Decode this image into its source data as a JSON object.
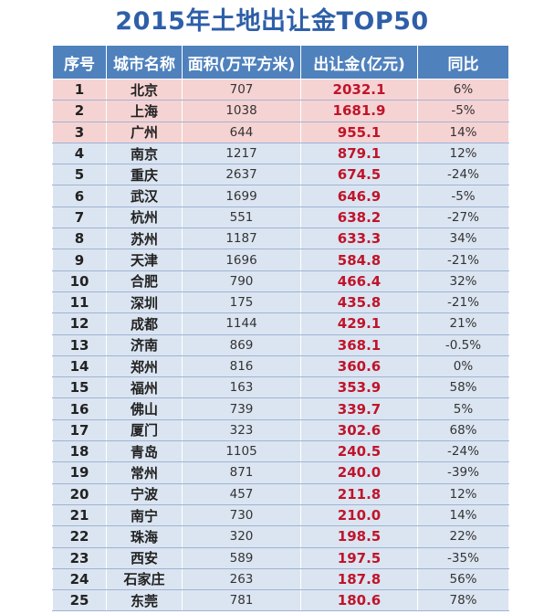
{
  "title": "2015年土地出让金TOP50",
  "colors": {
    "header_bg": "#4f81bd",
    "top3_bg": "#f6d3d3",
    "row_bg": "#dbe5f1",
    "price_text": "#c0142a",
    "title_text": "#2e5fa8"
  },
  "table": {
    "headers": [
      "序号",
      "城市名称",
      "面积(万平方米)",
      "出让金(亿元)",
      "同比"
    ],
    "rows": [
      {
        "rank": "1",
        "city": "北京",
        "area": "707",
        "price": "2032.1",
        "yoy": "6%"
      },
      {
        "rank": "2",
        "city": "上海",
        "area": "1038",
        "price": "1681.9",
        "yoy": "-5%"
      },
      {
        "rank": "3",
        "city": "广州",
        "area": "644",
        "price": "955.1",
        "yoy": "14%"
      },
      {
        "rank": "4",
        "city": "南京",
        "area": "1217",
        "price": "879.1",
        "yoy": "12%"
      },
      {
        "rank": "5",
        "city": "重庆",
        "area": "2637",
        "price": "674.5",
        "yoy": "-24%"
      },
      {
        "rank": "6",
        "city": "武汉",
        "area": "1699",
        "price": "646.9",
        "yoy": "-5%"
      },
      {
        "rank": "7",
        "city": "杭州",
        "area": "551",
        "price": "638.2",
        "yoy": "-27%"
      },
      {
        "rank": "8",
        "city": "苏州",
        "area": "1187",
        "price": "633.3",
        "yoy": "34%"
      },
      {
        "rank": "9",
        "city": "天津",
        "area": "1696",
        "price": "584.8",
        "yoy": "-21%"
      },
      {
        "rank": "10",
        "city": "合肥",
        "area": "790",
        "price": "466.4",
        "yoy": "32%"
      },
      {
        "rank": "11",
        "city": "深圳",
        "area": "175",
        "price": "435.8",
        "yoy": "-21%"
      },
      {
        "rank": "12",
        "city": "成都",
        "area": "1144",
        "price": "429.1",
        "yoy": "21%"
      },
      {
        "rank": "13",
        "city": "济南",
        "area": "869",
        "price": "368.1",
        "yoy": "-0.5%"
      },
      {
        "rank": "14",
        "city": "郑州",
        "area": "816",
        "price": "360.6",
        "yoy": "0%"
      },
      {
        "rank": "15",
        "city": "福州",
        "area": "163",
        "price": "353.9",
        "yoy": "58%"
      },
      {
        "rank": "16",
        "city": "佛山",
        "area": "739",
        "price": "339.7",
        "yoy": "5%"
      },
      {
        "rank": "17",
        "city": "厦门",
        "area": "323",
        "price": "302.6",
        "yoy": "68%"
      },
      {
        "rank": "18",
        "city": "青岛",
        "area": "1105",
        "price": "240.5",
        "yoy": "-24%"
      },
      {
        "rank": "19",
        "city": "常州",
        "area": "871",
        "price": "240.0",
        "yoy": "-39%"
      },
      {
        "rank": "20",
        "city": "宁波",
        "area": "457",
        "price": "211.8",
        "yoy": "12%"
      },
      {
        "rank": "21",
        "city": "南宁",
        "area": "730",
        "price": "210.0",
        "yoy": "14%"
      },
      {
        "rank": "22",
        "city": "珠海",
        "area": "320",
        "price": "198.5",
        "yoy": "22%"
      },
      {
        "rank": "23",
        "city": "西安",
        "area": "589",
        "price": "197.5",
        "yoy": "-35%"
      },
      {
        "rank": "24",
        "city": "石家庄",
        "area": "263",
        "price": "187.8",
        "yoy": "56%"
      },
      {
        "rank": "25",
        "city": "东莞",
        "area": "781",
        "price": "180.6",
        "yoy": "78%"
      }
    ]
  }
}
